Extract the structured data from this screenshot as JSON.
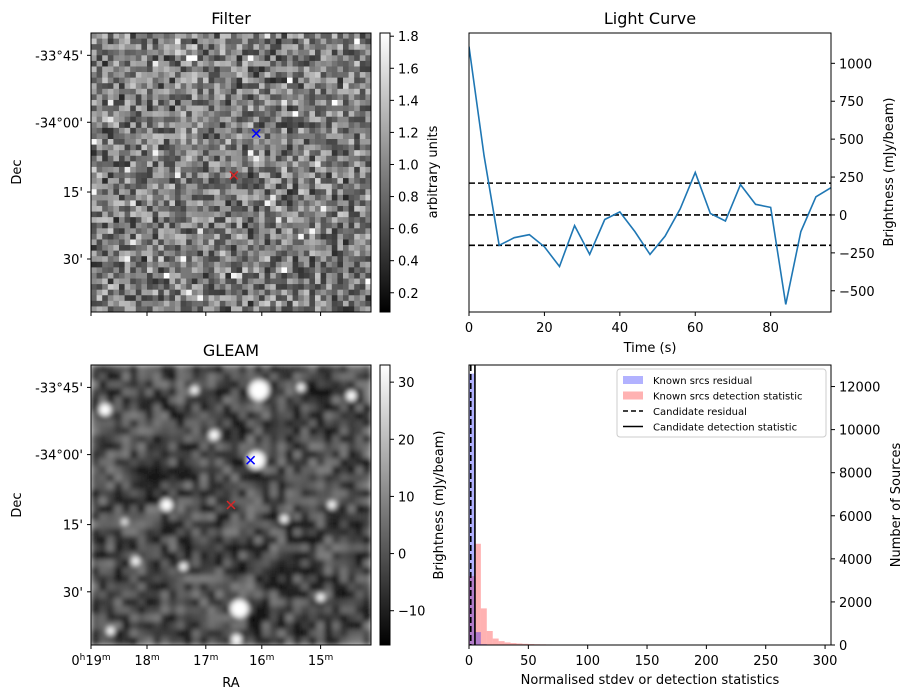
{
  "chart_data": [
    {
      "type": "heatmap",
      "panel": "top-left",
      "title": "Filter",
      "xlabel": "",
      "ylabel": "Dec",
      "y_tick_labels": [
        "-33°45'",
        "-34°00'",
        "15'",
        "30'"
      ],
      "x_tick_labels": [],
      "colormap": "gray",
      "colorbar": {
        "label": "arbitrary units",
        "range": [
          0.08,
          1.82
        ],
        "ticks": [
          "0.2",
          "0.4",
          "0.6",
          "0.8",
          "1.0",
          "1.2",
          "1.4",
          "1.6",
          "1.8"
        ]
      },
      "markers": [
        {
          "symbol": "x",
          "color": "#0000ff",
          "ra_frac": 0.59,
          "dec_frac": 0.36
        },
        {
          "symbol": "x",
          "color": "#d62728",
          "ra_frac": 0.51,
          "dec_frac": 0.51
        }
      ],
      "grid": false
    },
    {
      "type": "line",
      "panel": "top-right",
      "title": "Light Curve",
      "xlabel": "Time (s)",
      "ylabel": "Brightness (mJy/beam)",
      "xlim": [
        0,
        96
      ],
      "ylim": [
        -640,
        1200
      ],
      "x_ticks": [
        "0",
        "20",
        "40",
        "60",
        "80"
      ],
      "y_ticks": [
        "-500",
        "-250",
        "0",
        "250",
        "500",
        "750",
        "1000"
      ],
      "series": [
        {
          "color": "#1f77b4",
          "x": [
            0,
            4,
            8,
            12,
            16,
            20,
            24,
            28,
            32,
            36,
            40,
            44,
            48,
            52,
            56,
            60,
            64,
            68,
            72,
            76,
            80,
            84,
            88,
            92,
            96
          ],
          "y": [
            1110,
            390,
            -200,
            -150,
            -130,
            -210,
            -340,
            -70,
            -260,
            -30,
            20,
            -110,
            -260,
            -140,
            40,
            280,
            10,
            -40,
            200,
            70,
            50,
            -590,
            -110,
            120,
            180
          ]
        }
      ],
      "hlines": [
        {
          "y": 210,
          "style": "dashed",
          "color": "#000000"
        },
        {
          "y": 0,
          "style": "dashed",
          "color": "#000000"
        },
        {
          "y": -200,
          "style": "dashed",
          "color": "#000000"
        }
      ],
      "grid": false
    },
    {
      "type": "heatmap",
      "panel": "bottom-left",
      "title": "GLEAM",
      "xlabel": "RA",
      "ylabel": "Dec",
      "y_tick_labels": [
        "-33°45'",
        "-34°00'",
        "15'",
        "30'"
      ],
      "x_tick_labels": [
        "0h19m",
        "18m",
        "17m",
        "16m",
        "15m"
      ],
      "colormap": "gray",
      "colorbar": {
        "label": "Brightness (mJy/beam)",
        "range": [
          -16,
          33
        ],
        "ticks": [
          "−10",
          "0",
          "10",
          "20",
          "30"
        ]
      },
      "blobs": [
        {
          "ra_frac": 0.59,
          "dec_frac": 0.34,
          "r": 9
        },
        {
          "ra_frac": 0.6,
          "dec_frac": 0.09,
          "r": 10
        },
        {
          "ra_frac": 0.53,
          "dec_frac": 0.87,
          "r": 9
        },
        {
          "ra_frac": 0.27,
          "dec_frac": 0.5,
          "r": 6
        },
        {
          "ra_frac": 0.05,
          "dec_frac": 0.16,
          "r": 6
        },
        {
          "ra_frac": 0.44,
          "dec_frac": 0.25,
          "r": 5
        },
        {
          "ra_frac": 0.37,
          "dec_frac": 0.09,
          "r": 4
        },
        {
          "ra_frac": 0.16,
          "dec_frac": 0.7,
          "r": 4
        },
        {
          "ra_frac": 0.93,
          "dec_frac": 0.11,
          "r": 5
        },
        {
          "ra_frac": 0.69,
          "dec_frac": 0.55,
          "r": 4
        },
        {
          "ra_frac": 0.33,
          "dec_frac": 0.72,
          "r": 4
        },
        {
          "ra_frac": 0.82,
          "dec_frac": 0.83,
          "r": 4
        },
        {
          "ra_frac": 0.52,
          "dec_frac": 0.98,
          "r": 5
        },
        {
          "ra_frac": 0.07,
          "dec_frac": 0.95,
          "r": 4
        },
        {
          "ra_frac": 0.86,
          "dec_frac": 0.5,
          "r": 4
        },
        {
          "ra_frac": 0.12,
          "dec_frac": 0.56,
          "r": 3
        },
        {
          "ra_frac": 0.75,
          "dec_frac": 0.08,
          "r": 4
        }
      ],
      "markers": [
        {
          "symbol": "x",
          "color": "#0000ff",
          "ra_frac": 0.57,
          "dec_frac": 0.34
        },
        {
          "symbol": "x",
          "color": "#d62728",
          "ra_frac": 0.5,
          "dec_frac": 0.5
        }
      ],
      "grid": false
    },
    {
      "type": "bar",
      "panel": "bottom-right",
      "title": "",
      "xlabel": "Normalised stdev or detection statistics",
      "ylabel": "Brightness (mJy/beam)",
      "y2label": "Number of Sources",
      "xlim": [
        0,
        305
      ],
      "ylim": [
        0,
        13000
      ],
      "x_ticks": [
        "0",
        "50",
        "100",
        "150",
        "200",
        "250",
        "300"
      ],
      "y2_ticks": [
        "0",
        "2000",
        "4000",
        "6000",
        "8000",
        "10000",
        "12000"
      ],
      "bin_width": 5,
      "series": [
        {
          "name": "Known srcs residual",
          "color": "#0000ff",
          "alpha": 0.3,
          "bin_starts": [
            0,
            5,
            10,
            15
          ],
          "counts": [
            12600,
            600,
            40,
            5
          ]
        },
        {
          "name": "Known srcs detection statistic",
          "color": "#ff0000",
          "alpha": 0.3,
          "bin_starts": [
            0,
            5,
            10,
            15,
            20,
            25,
            30,
            35,
            40,
            45,
            50,
            55,
            60,
            65,
            70,
            75,
            80,
            85,
            90,
            95,
            100,
            105,
            110,
            115,
            120,
            125,
            130,
            135,
            140,
            145,
            150,
            155,
            160,
            165,
            170,
            175,
            180,
            185,
            190,
            195,
            200,
            205,
            210,
            215,
            220,
            225,
            230,
            235,
            240,
            245,
            250,
            255,
            260,
            265,
            270,
            275,
            280,
            285,
            290
          ],
          "counts": [
            3200,
            4700,
            1700,
            650,
            300,
            180,
            120,
            90,
            70,
            55,
            45,
            35,
            30,
            25,
            20,
            18,
            15,
            13,
            12,
            10,
            10,
            9,
            8,
            7,
            7,
            6,
            6,
            5,
            5,
            5,
            8,
            6,
            5,
            4,
            4,
            4,
            3,
            3,
            3,
            3,
            3,
            3,
            2,
            2,
            2,
            2,
            2,
            2,
            2,
            2,
            2,
            2,
            2,
            1,
            1,
            1,
            1,
            1,
            6
          ]
        }
      ],
      "vlines": [
        {
          "name": "Candidate residual",
          "x": 1.5,
          "style": "dashed",
          "color": "#000000"
        },
        {
          "name": "Candidate detection statistic",
          "x": 5,
          "style": "solid",
          "color": "#000000"
        }
      ],
      "legend": {
        "placement": "top-right",
        "entries": [
          "Known srcs residual",
          "Known srcs detection statistic",
          "Candidate residual",
          "Candidate detection statistic"
        ]
      },
      "grid": false
    }
  ]
}
